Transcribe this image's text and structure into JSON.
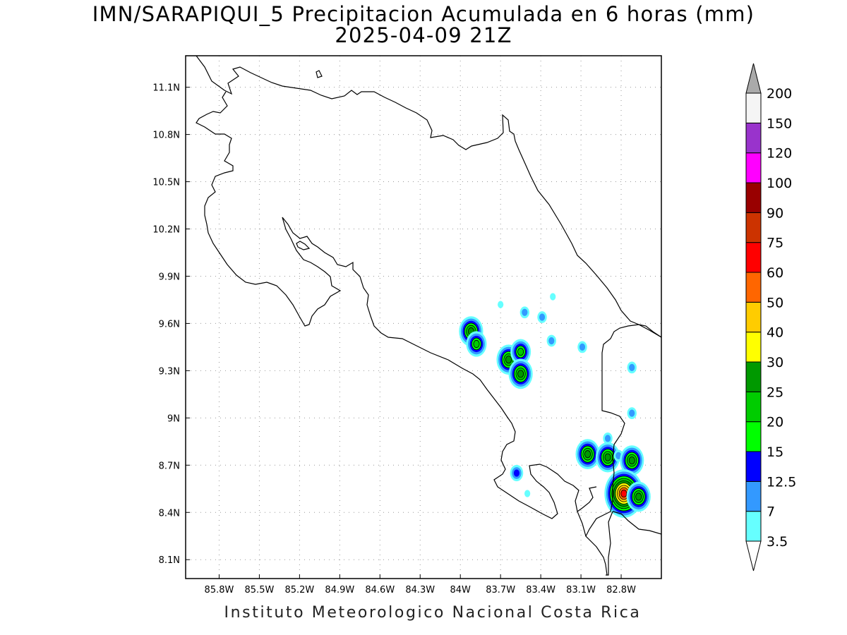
{
  "title": "IMN/SARAPIQUI_5 Precipitacion Acumulada en 6 horas (mm)",
  "subtitle": "2025-04-09 21Z",
  "footer": "Instituto Meteorologico Nacional Costa Rica",
  "map": {
    "lon_range": [
      -86.05,
      -82.5
    ],
    "lat_range": [
      7.98,
      11.3
    ],
    "lon_ticks": [
      "85.8W",
      "85.5W",
      "85.2W",
      "84.9W",
      "84.6W",
      "84.3W",
      "84W",
      "83.7W",
      "83.4W",
      "83.1W",
      "82.8W"
    ],
    "lat_ticks": [
      "11.1N",
      "10.8N",
      "10.5N",
      "10.2N",
      "9.9N",
      "9.6N",
      "9.3N",
      "9N",
      "8.7N",
      "8.4N",
      "8.1N"
    ],
    "grid": true
  },
  "colorbar": {
    "levels": [
      "3.5",
      "7",
      "12.5",
      "15",
      "20",
      "25",
      "30",
      "40",
      "50",
      "60",
      "75",
      "90",
      "100",
      "120",
      "150",
      "200"
    ],
    "colors": [
      "#ffffff",
      "#66ffff",
      "#3399ff",
      "#0000ff",
      "#00ff00",
      "#00cc00",
      "#009900",
      "#ffff00",
      "#ffcc00",
      "#ff6600",
      "#ff0000",
      "#cc3300",
      "#990000",
      "#ff00ff",
      "#9933cc",
      "#f5f5f5",
      "#aaaaaa"
    ]
  },
  "precip_cells": [
    {
      "lon": -83.92,
      "lat": 9.55,
      "max_class": 6
    },
    {
      "lon": -83.88,
      "lat": 9.47,
      "max_class": 5
    },
    {
      "lon": -83.7,
      "lat": 9.72,
      "max_class": 1
    },
    {
      "lon": -83.64,
      "lat": 9.37,
      "max_class": 6
    },
    {
      "lon": -83.55,
      "lat": 9.42,
      "max_class": 5
    },
    {
      "lon": -83.55,
      "lat": 9.28,
      "max_class": 6
    },
    {
      "lon": -83.52,
      "lat": 9.67,
      "max_class": 2
    },
    {
      "lon": -83.39,
      "lat": 9.64,
      "max_class": 2
    },
    {
      "lon": -83.32,
      "lat": 9.49,
      "max_class": 2
    },
    {
      "lon": -83.09,
      "lat": 9.45,
      "max_class": 2
    },
    {
      "lon": -83.31,
      "lat": 9.77,
      "max_class": 1
    },
    {
      "lon": -83.58,
      "lat": 8.65,
      "max_class": 3
    },
    {
      "lon": -83.5,
      "lat": 8.52,
      "max_class": 1
    },
    {
      "lon": -83.05,
      "lat": 8.77,
      "max_class": 6
    },
    {
      "lon": -82.9,
      "lat": 8.75,
      "max_class": 6
    },
    {
      "lon": -82.9,
      "lat": 8.87,
      "max_class": 2
    },
    {
      "lon": -82.82,
      "lat": 8.76,
      "max_class": 2
    },
    {
      "lon": -82.72,
      "lat": 8.73,
      "max_class": 6
    },
    {
      "lon": -82.78,
      "lat": 8.52,
      "max_class": 10
    },
    {
      "lon": -82.67,
      "lat": 8.5,
      "max_class": 6
    },
    {
      "lon": -82.72,
      "lat": 9.32,
      "max_class": 2
    },
    {
      "lon": -82.72,
      "lat": 9.03,
      "max_class": 2
    }
  ]
}
